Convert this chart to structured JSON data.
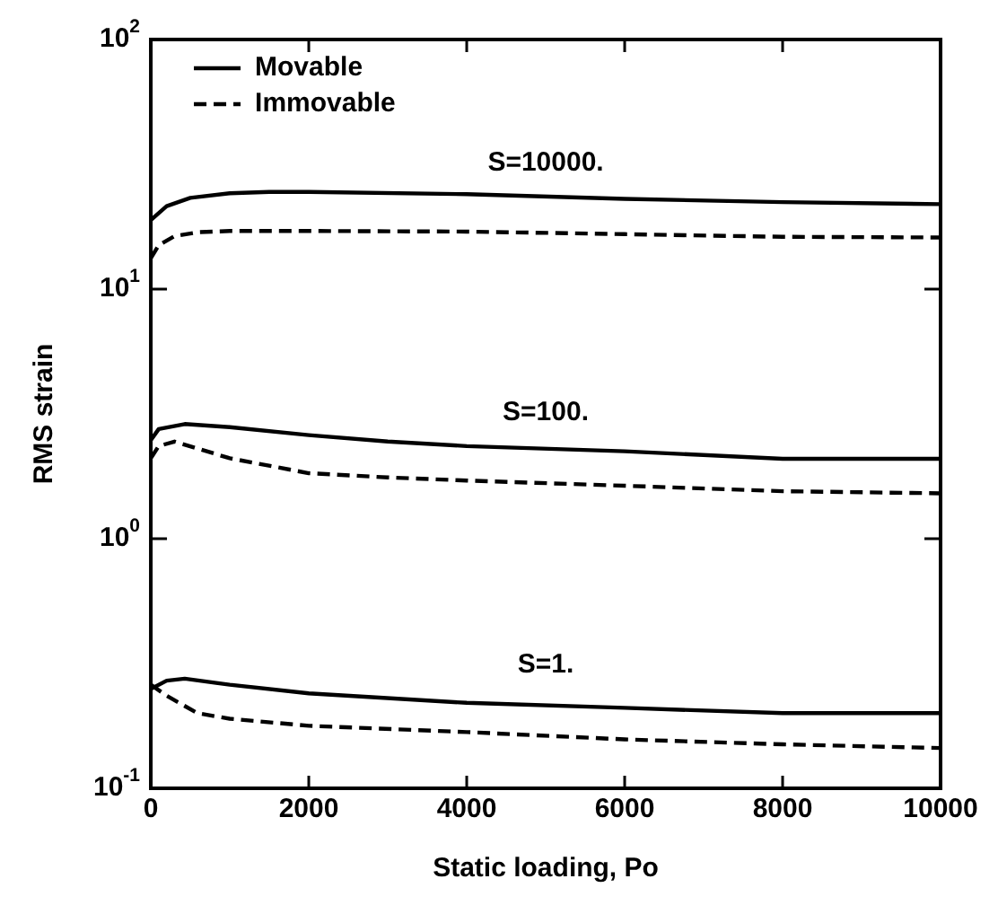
{
  "chart_data": {
    "type": "line",
    "xlabel": "Static loading, Po",
    "ylabel": "RMS strain",
    "log": "y",
    "grid": false,
    "legend": "top left",
    "marker": "none",
    "xlim": [
      0,
      10000
    ],
    "xticks": [
      0,
      2000,
      4000,
      6000,
      8000,
      10000
    ],
    "ylim": [
      0.1,
      100
    ],
    "yticks": [
      {
        "value": 0.1,
        "label": "10$^{-1}$"
      },
      {
        "value": 1,
        "label": "10$^{0}$"
      },
      {
        "value": 10,
        "label": "10$^{1}$"
      },
      {
        "value": 100,
        "label": "10$^{2}$"
      }
    ],
    "annotations": [
      "S=10000.",
      "S=100.",
      "S=1."
    ],
    "series": [
      {
        "name": "Movable",
        "color": "#000000",
        "line_style": "solid",
        "x": [
          0,
          200,
          500,
          1000,
          1500,
          2000,
          4000,
          6000,
          8000,
          10000
        ],
        "values": [
          18.9,
          21.5,
          23.2,
          24.2,
          24.5,
          24.5,
          24,
          23,
          22.3,
          21.9
        ]
      },
      {
        "name": "Immovable",
        "color": "#000000",
        "line_style": "dashed",
        "x": [
          0,
          100,
          300,
          600,
          1000,
          2000,
          4000,
          6000,
          8000,
          10000
        ],
        "values": [
          13.3,
          15,
          16.3,
          16.9,
          17.1,
          17.1,
          17,
          16.6,
          16.2,
          16.1
        ]
      },
      {
        "color": "#000000",
        "line_style": "solid",
        "x": [
          0,
          100,
          430,
          1000,
          2000,
          3000,
          4000,
          6000,
          8000,
          10000
        ],
        "values": [
          2.48,
          2.75,
          2.88,
          2.8,
          2.6,
          2.45,
          2.35,
          2.24,
          2.09,
          2.09
        ]
      },
      {
        "color": "#000000",
        "line_style": "dashed",
        "x": [
          0,
          100,
          300,
          1000,
          2000,
          3000,
          4000,
          6000,
          8000,
          10000
        ],
        "values": [
          2.1,
          2.35,
          2.45,
          2.1,
          1.83,
          1.76,
          1.71,
          1.63,
          1.55,
          1.52
        ]
      },
      {
        "color": "#000000",
        "line_style": "solid",
        "x": [
          0,
          200,
          430,
          1000,
          2000,
          4000,
          6000,
          8000,
          10000
        ],
        "values": [
          0.25,
          0.27,
          0.275,
          0.26,
          0.24,
          0.22,
          0.21,
          0.2,
          0.2
        ]
      },
      {
        "color": "#000000",
        "line_style": "dashed",
        "x": [
          0,
          200,
          590,
          1000,
          2000,
          4000,
          6000,
          8000,
          10000
        ],
        "values": [
          0.26,
          0.235,
          0.2,
          0.19,
          0.178,
          0.168,
          0.157,
          0.15,
          0.145
        ]
      }
    ]
  }
}
